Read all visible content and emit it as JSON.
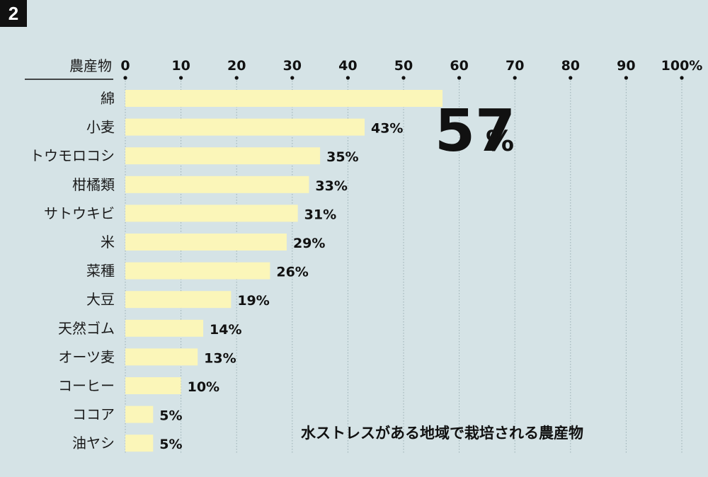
{
  "figure_number": "2",
  "category_header": "農産物",
  "caption": "水ストレスがある地域で栽培される農産物",
  "highlight": {
    "value": "57",
    "unit": "%"
  },
  "colors": {
    "background": "#d5e3e6",
    "bar": "#fbf6b9",
    "grid": "#9aaeb3",
    "text": "#111111"
  },
  "chart_data": {
    "type": "bar",
    "orientation": "horizontal",
    "categories": [
      "綿",
      "小麦",
      "トウモロコシ",
      "柑橘類",
      "サトウキビ",
      "米",
      "菜種",
      "大豆",
      "天然ゴム",
      "オーツ麦",
      "コーヒー",
      "ココア",
      "油ヤシ"
    ],
    "values": [
      57,
      43,
      35,
      33,
      31,
      29,
      26,
      19,
      14,
      13,
      10,
      5,
      5
    ],
    "value_labels": [
      "",
      "43%",
      "35%",
      "33%",
      "31%",
      "29%",
      "26%",
      "19%",
      "14%",
      "13%",
      "10%",
      "5%",
      "5%"
    ],
    "x_ticks": [
      "0",
      "10",
      "20",
      "30",
      "40",
      "50",
      "60",
      "70",
      "80",
      "90",
      "100%"
    ],
    "xlim": [
      0,
      100
    ],
    "grid": true,
    "title": "水ストレスがある地域で栽培される農産物",
    "ylabel": "農産物"
  }
}
